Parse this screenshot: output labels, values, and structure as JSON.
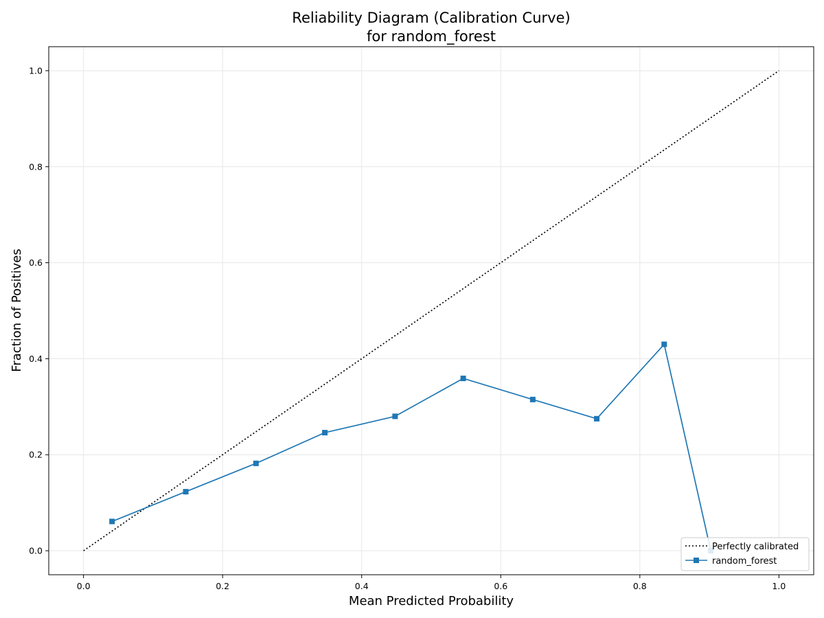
{
  "chart_data": {
    "type": "line",
    "title": "Reliability Diagram (Calibration Curve)",
    "subtitle": "for random_forest",
    "xlabel": "Mean Predicted Probability",
    "ylabel": "Fraction of Positives",
    "xlim": [
      -0.05,
      1.05
    ],
    "ylim": [
      -0.05,
      1.05
    ],
    "x_ticks": [
      "0.0",
      "0.2",
      "0.4",
      "0.6",
      "0.8",
      "1.0"
    ],
    "y_ticks": [
      "0.0",
      "0.2",
      "0.4",
      "0.6",
      "0.8",
      "1.0"
    ],
    "grid": true,
    "legend_position": "bottom-right",
    "series": [
      {
        "name": "Perfectly calibrated",
        "style": "dotted",
        "color": "#000000",
        "marker": "none",
        "x": [
          0.0,
          1.0
        ],
        "y": [
          0.0,
          1.0
        ]
      },
      {
        "name": "random_forest",
        "style": "solid",
        "color": "#1f77b4",
        "marker": "square",
        "x": [
          0.041,
          0.147,
          0.248,
          0.347,
          0.448,
          0.546,
          0.646,
          0.738,
          0.835,
          0.902
        ],
        "y": [
          0.061,
          0.123,
          0.182,
          0.246,
          0.28,
          0.359,
          0.315,
          0.275,
          0.43,
          0.0
        ]
      }
    ]
  }
}
